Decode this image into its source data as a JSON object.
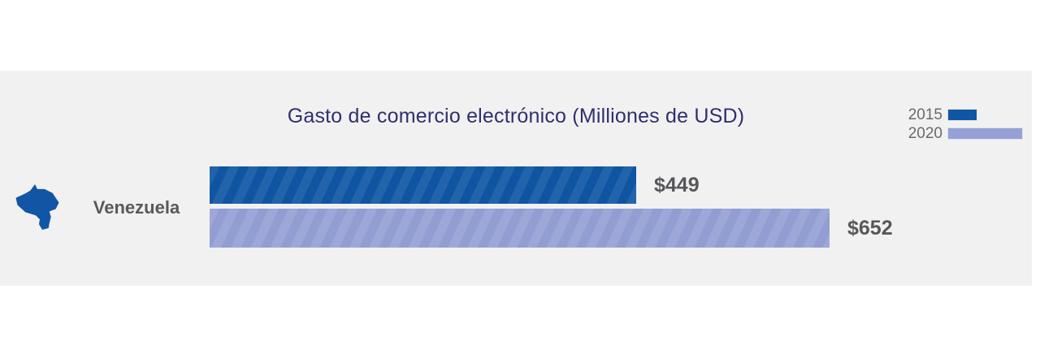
{
  "chart_data": {
    "type": "bar",
    "orientation": "horizontal",
    "title": "Gasto de comercio electrónico (Milliones de USD)",
    "categories": [
      "Venezuela"
    ],
    "series": [
      {
        "name": "2015",
        "values": [
          449
        ],
        "data_label": "$449",
        "color": "#0f57a5"
      },
      {
        "name": "2020",
        "values": [
          652
        ],
        "data_label": "$652",
        "color": "#95a1d6"
      }
    ],
    "xlim": [
      0,
      652
    ],
    "grid": false,
    "legend_position": "top-right"
  },
  "colors": {
    "page_background": "#ffffff",
    "band_background": "#f1f1f2",
    "title_text": "#312f6d",
    "country_label_text": "#59595b",
    "legend_text": "#6a6a6c",
    "value_label_text": "#565759",
    "map_icon_fill": "#1056a4"
  },
  "icons": {
    "venezuela_map": "venezuela-country-silhouette"
  }
}
